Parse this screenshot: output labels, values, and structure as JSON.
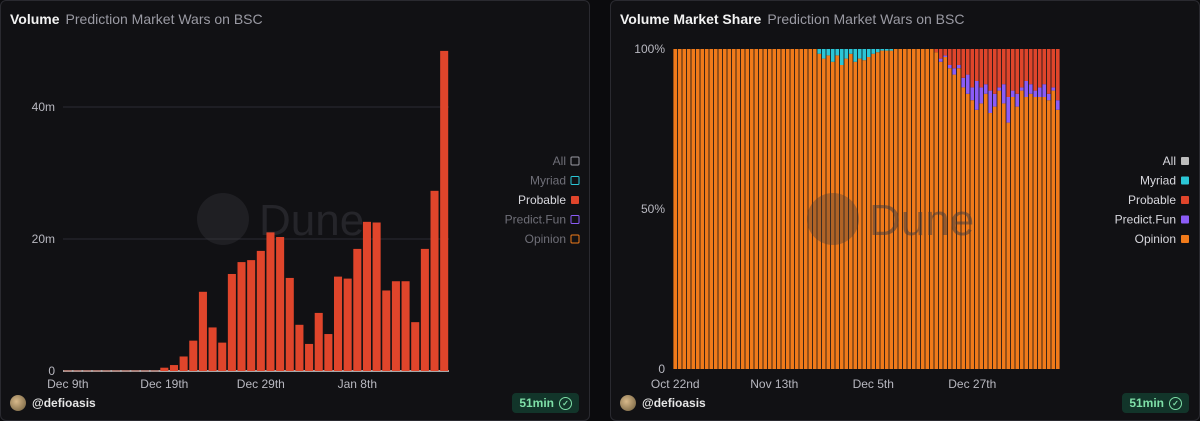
{
  "left": {
    "title": "Volume",
    "subtitle": "Prediction Market Wars on BSC",
    "user": "@defioasis",
    "refresh": "51min",
    "watermark": "Dune"
  },
  "right": {
    "title": "Volume Market Share",
    "subtitle": "Prediction Market Wars on BSC",
    "user": "@defioasis",
    "refresh": "51min",
    "watermark": "Dune"
  },
  "chart_data": [
    {
      "type": "bar",
      "title": "Volume",
      "ylim": [
        0,
        50
      ],
      "yticks": [
        0,
        20,
        40
      ],
      "ytick_labels": [
        "0",
        "20m",
        "40m"
      ],
      "xtick_labels": [
        "Dec 9th",
        "Dec 19th",
        "Dec 29th",
        "Jan 8th"
      ],
      "xtick_index": [
        0,
        10,
        20,
        30
      ],
      "colors": {
        "All": "#ffffff",
        "Myriad": "#2bc6d6",
        "Probable": "#e0452b",
        "Predict.Fun": "#8b5cf6",
        "Opinion": "#f07a1a"
      },
      "legend": [
        {
          "name": "All",
          "muted": true
        },
        {
          "name": "Myriad",
          "muted": true
        },
        {
          "name": "Probable",
          "muted": false
        },
        {
          "name": "Predict.Fun",
          "muted": true
        },
        {
          "name": "Opinion",
          "muted": true
        }
      ],
      "series_shown": "Probable",
      "values": [
        0.05,
        0.05,
        0.05,
        0.05,
        0.05,
        0.05,
        0.05,
        0.05,
        0.05,
        0.05,
        0.5,
        0.9,
        2.2,
        4.6,
        12,
        6.6,
        4.3,
        14.7,
        16.5,
        16.8,
        18.2,
        21,
        20.3,
        14.1,
        7,
        4.1,
        8.8,
        5.6,
        14.3,
        14,
        18.5,
        22.6,
        22.5,
        12.2,
        13.6,
        13.6,
        7.4,
        18.5,
        27.3,
        48.5
      ]
    },
    {
      "type": "bar",
      "stacked": true,
      "title": "Volume Market Share",
      "ylim": [
        0,
        100
      ],
      "ytick_labels": [
        "0",
        "50%",
        "100%"
      ],
      "xtick_labels": [
        "Oct 22nd",
        "Nov 13th",
        "Dec 5th",
        "Dec 27th"
      ],
      "xtick_index": [
        0,
        22,
        44,
        66
      ],
      "n_bars": 86,
      "legend": [
        "All",
        "Myriad",
        "Probable",
        "Predict.Fun",
        "Opinion"
      ],
      "colors": {
        "All": "#bdbdbd",
        "Myriad": "#2bc6d6",
        "Probable": "#e0452b",
        "Predict.Fun": "#8b5cf6",
        "Opinion": "#f07a1a"
      },
      "series": [
        {
          "name": "Myriad",
          "values": [
            0,
            0,
            0,
            0,
            0,
            0,
            0,
            0,
            0,
            0,
            0,
            0,
            0,
            0,
            0,
            0,
            0,
            0,
            0,
            0,
            0,
            0,
            0,
            0,
            0,
            0,
            0,
            0,
            0,
            0,
            0,
            0,
            1.5,
            3,
            2,
            4,
            2,
            5,
            3,
            1.5,
            4,
            3,
            3.5,
            2.5,
            1.5,
            1,
            0.5,
            0.5,
            0.5,
            0,
            0,
            0,
            0,
            0,
            0,
            0,
            0,
            0,
            0,
            0,
            0,
            0,
            0,
            0,
            0,
            0,
            0,
            0,
            0,
            0,
            0,
            0,
            0,
            0,
            0,
            0,
            0,
            0,
            0,
            0,
            0,
            0,
            0,
            0,
            0,
            0
          ]
        },
        {
          "name": "Probable",
          "values": [
            0,
            0,
            0,
            0,
            0,
            0,
            0,
            0,
            0,
            0,
            0,
            0,
            0,
            0,
            0,
            0,
            0,
            0,
            0,
            0,
            0,
            0,
            0,
            0,
            0,
            0,
            0,
            0,
            0,
            0,
            0,
            0,
            0,
            0,
            0,
            0,
            0,
            0,
            0,
            0,
            0,
            0,
            0,
            0,
            0,
            0,
            0,
            0,
            0,
            0,
            0,
            0,
            0,
            0,
            0,
            0,
            0,
            0,
            1,
            3,
            2,
            5,
            6,
            5,
            9,
            8,
            12,
            10,
            12,
            11,
            13,
            14,
            12,
            11,
            15,
            13,
            14,
            12,
            10,
            11,
            13,
            12,
            11,
            14,
            12,
            16
          ]
        },
        {
          "name": "Predict.Fun",
          "values": [
            0,
            0,
            0,
            0,
            0,
            0,
            0,
            0,
            0,
            0,
            0,
            0,
            0,
            0,
            0,
            0,
            0,
            0,
            0,
            0,
            0,
            0,
            0,
            0,
            0,
            0,
            0,
            0,
            0,
            0,
            0,
            0,
            0,
            0,
            0,
            0,
            0,
            0,
            0,
            0,
            0,
            0,
            0,
            0,
            0,
            0,
            0,
            0,
            0,
            0,
            0,
            0,
            0,
            0,
            0,
            0,
            0,
            0,
            0,
            1,
            0.5,
            1,
            2,
            1,
            3,
            6,
            4,
            9,
            5,
            3,
            7,
            4,
            1,
            6,
            8,
            2,
            4,
            1,
            5,
            3,
            2,
            3,
            4,
            2,
            1,
            3
          ]
        },
        {
          "name": "Opinion",
          "values": [
            100,
            100,
            100,
            100,
            100,
            100,
            100,
            100,
            100,
            100,
            100,
            100,
            100,
            100,
            100,
            100,
            100,
            100,
            100,
            100,
            100,
            100,
            100,
            100,
            100,
            100,
            100,
            100,
            100,
            100,
            100,
            100,
            98.5,
            97,
            98,
            96,
            98,
            95,
            97,
            98.5,
            96,
            97,
            96.5,
            97.5,
            98.5,
            99,
            99.5,
            99.5,
            99.5,
            100,
            100,
            100,
            100,
            100,
            100,
            100,
            100,
            100,
            99,
            96,
            97.5,
            94,
            92,
            94,
            88,
            86,
            84,
            81,
            83,
            86,
            80,
            82,
            87,
            83,
            77,
            85,
            82,
            87,
            85,
            86,
            85,
            85,
            85,
            84,
            87,
            81
          ]
        }
      ]
    }
  ]
}
